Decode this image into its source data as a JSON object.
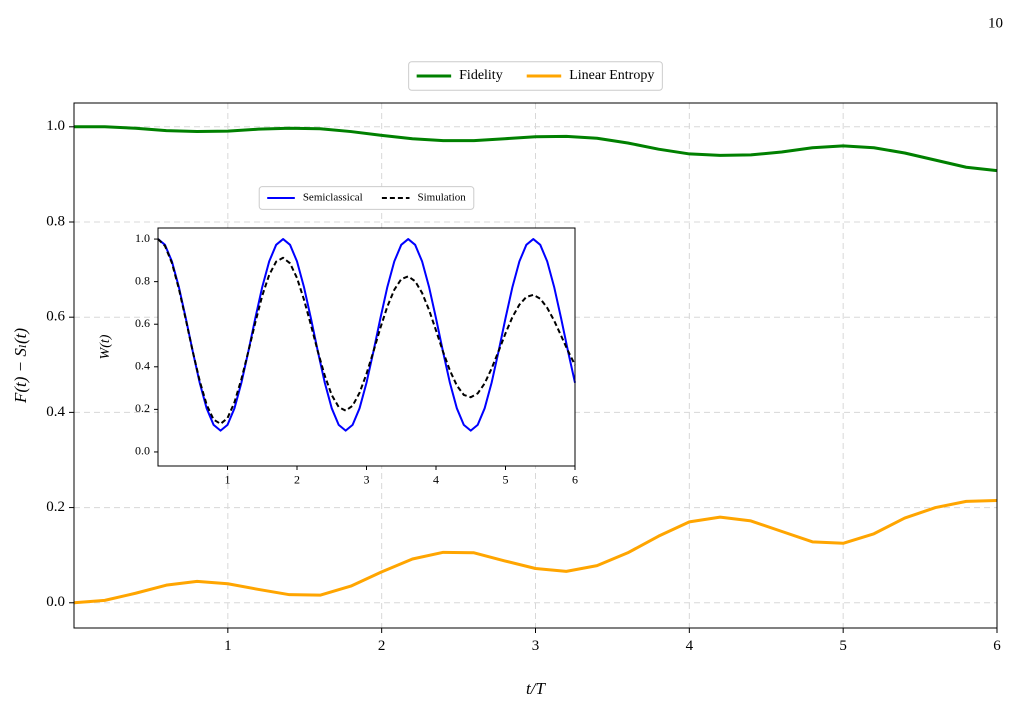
{
  "page_number": "10",
  "chart_data": [
    {
      "type": "line",
      "x_label": "t/T",
      "y_label": "F(t) − Sₗ(t)",
      "x": [
        0,
        0.2,
        0.4,
        0.6,
        0.8,
        1.0,
        1.2,
        1.4,
        1.6,
        1.8,
        2.0,
        2.2,
        2.4,
        2.6,
        2.8,
        3.0,
        3.2,
        3.4,
        3.6,
        3.8,
        4.0,
        4.2,
        4.4,
        4.6,
        4.8,
        5.0,
        5.2,
        5.4,
        5.6,
        5.8,
        6.0
      ],
      "series": [
        {
          "name": "Fidelity",
          "color": "#008000",
          "linestyle": "solid",
          "values": [
            1.0,
            1.0,
            0.997,
            0.992,
            0.99,
            0.991,
            0.995,
            0.997,
            0.996,
            0.99,
            0.982,
            0.975,
            0.971,
            0.971,
            0.975,
            0.979,
            0.98,
            0.976,
            0.966,
            0.953,
            0.943,
            0.94,
            0.941,
            0.947,
            0.956,
            0.96,
            0.956,
            0.945,
            0.93,
            0.915,
            0.908
          ]
        },
        {
          "name": "Linear Entropy",
          "color": "#ffa500",
          "linestyle": "solid",
          "values": [
            0,
            0.005,
            0.02,
            0.037,
            0.045,
            0.04,
            0.028,
            0.017,
            0.016,
            0.035,
            0.065,
            0.092,
            0.106,
            0.105,
            0.088,
            0.072,
            0.066,
            0.078,
            0.105,
            0.14,
            0.17,
            0.18,
            0.172,
            0.15,
            0.128,
            0.125,
            0.145,
            0.178,
            0.2,
            0.213,
            0.215
          ]
        }
      ],
      "xlim": [
        0,
        6
      ],
      "ylim": [
        -0.053,
        1.05
      ],
      "xticks": [
        1,
        2,
        3,
        4,
        5,
        6
      ],
      "yticks": [
        {
          "value": 0,
          "label": "0.0"
        },
        0.2,
        0.4,
        0.6,
        0.8,
        {
          "value": 1,
          "label": "1.0"
        }
      ],
      "grid": true,
      "legend": "above"
    },
    {
      "type": "line",
      "y_label": "W(t)",
      "x": [
        0,
        0.1,
        0.2,
        0.3,
        0.4,
        0.5,
        0.6,
        0.7,
        0.8,
        0.9,
        1.0,
        1.1,
        1.2,
        1.3,
        1.4,
        1.5,
        1.6,
        1.7,
        1.8,
        1.9,
        2.0,
        2.1,
        2.2,
        2.3,
        2.4,
        2.5,
        2.6,
        2.7,
        2.8,
        2.9,
        3.0,
        3.1,
        3.2,
        3.3,
        3.4,
        3.5,
        3.6,
        3.7,
        3.8,
        3.9,
        4.0,
        4.1,
        4.2,
        4.3,
        4.4,
        4.5,
        4.6,
        4.7,
        4.8,
        4.9,
        5.0,
        5.1,
        5.2,
        5.3,
        5.4,
        5.5,
        5.6,
        5.7,
        5.8,
        5.9,
        6.0
      ],
      "series": [
        {
          "name": "Semiclassical",
          "color": "#0000ff",
          "linestyle": "solid",
          "values": [
            1.0,
            0.973,
            0.895,
            0.775,
            0.628,
            0.472,
            0.325,
            0.205,
            0.127,
            0.1,
            0.127,
            0.205,
            0.325,
            0.472,
            0.628,
            0.775,
            0.895,
            0.973,
            1.0,
            0.973,
            0.895,
            0.775,
            0.628,
            0.472,
            0.325,
            0.205,
            0.127,
            0.1,
            0.127,
            0.205,
            0.325,
            0.472,
            0.628,
            0.775,
            0.895,
            0.973,
            1.0,
            0.973,
            0.895,
            0.775,
            0.628,
            0.472,
            0.325,
            0.205,
            0.127,
            0.1,
            0.127,
            0.205,
            0.325,
            0.472,
            0.628,
            0.775,
            0.895,
            0.973,
            1.0,
            0.973,
            0.895,
            0.775,
            0.628,
            0.472,
            0.325
          ]
        },
        {
          "name": "Simulation",
          "color": "#000000",
          "linestyle": "dashed",
          "values": [
            1.0,
            0.968,
            0.888,
            0.767,
            0.622,
            0.472,
            0.334,
            0.222,
            0.152,
            0.132,
            0.159,
            0.233,
            0.342,
            0.472,
            0.608,
            0.734,
            0.832,
            0.894,
            0.912,
            0.886,
            0.817,
            0.716,
            0.597,
            0.472,
            0.358,
            0.267,
            0.211,
            0.194,
            0.217,
            0.278,
            0.367,
            0.472,
            0.583,
            0.683,
            0.762,
            0.812,
            0.825,
            0.802,
            0.747,
            0.667,
            0.571,
            0.472,
            0.383,
            0.312,
            0.268,
            0.257,
            0.275,
            0.322,
            0.392,
            0.473,
            0.557,
            0.634,
            0.692,
            0.728,
            0.738,
            0.72,
            0.677,
            0.617,
            0.546,
            0.474,
            0.409
          ]
        }
      ],
      "xlim": [
        0,
        6
      ],
      "ylim": [
        -0.066,
        1.052
      ],
      "xticks": [
        1,
        2,
        3,
        4,
        5,
        6
      ],
      "yticks": [
        {
          "value": 0,
          "label": "0.0"
        },
        0.2,
        0.4,
        0.6,
        0.8,
        {
          "value": 1,
          "label": "1.0"
        }
      ],
      "grid": false,
      "legend": "above"
    }
  ]
}
